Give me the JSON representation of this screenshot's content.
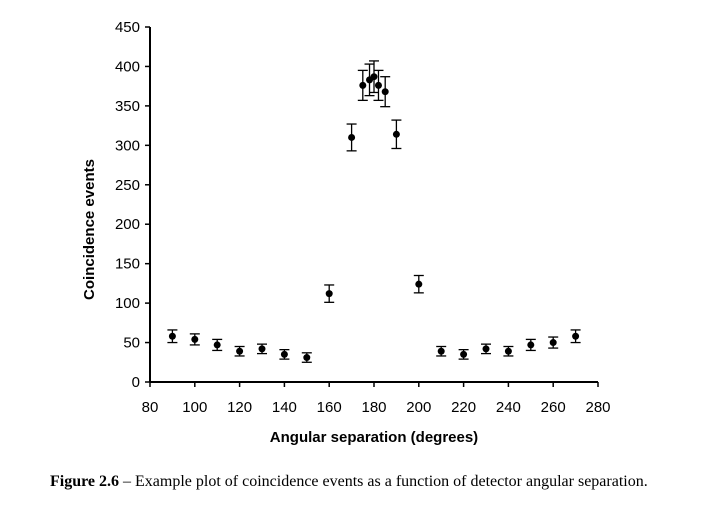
{
  "chart_data": {
    "type": "scatter",
    "xlabel": "Angular separation (degrees)",
    "ylabel": "Coincidence events",
    "xlim": [
      80,
      280
    ],
    "ylim": [
      0,
      450
    ],
    "xticks": [
      80,
      100,
      120,
      140,
      160,
      180,
      200,
      220,
      240,
      260,
      280
    ],
    "yticks": [
      0,
      50,
      100,
      150,
      200,
      250,
      300,
      350,
      400,
      450
    ],
    "grid": false,
    "error_bars": true,
    "points": [
      {
        "x": 90,
        "y": 58,
        "err": 8
      },
      {
        "x": 100,
        "y": 54,
        "err": 7
      },
      {
        "x": 110,
        "y": 47,
        "err": 7
      },
      {
        "x": 120,
        "y": 39,
        "err": 6
      },
      {
        "x": 130,
        "y": 42,
        "err": 6
      },
      {
        "x": 140,
        "y": 35,
        "err": 6
      },
      {
        "x": 150,
        "y": 31,
        "err": 6
      },
      {
        "x": 160,
        "y": 112,
        "err": 11
      },
      {
        "x": 170,
        "y": 310,
        "err": 17
      },
      {
        "x": 175,
        "y": 376,
        "err": 19
      },
      {
        "x": 178,
        "y": 383,
        "err": 20
      },
      {
        "x": 180,
        "y": 387,
        "err": 20
      },
      {
        "x": 182,
        "y": 376,
        "err": 19
      },
      {
        "x": 185,
        "y": 368,
        "err": 19
      },
      {
        "x": 190,
        "y": 314,
        "err": 18
      },
      {
        "x": 200,
        "y": 124,
        "err": 11
      },
      {
        "x": 210,
        "y": 39,
        "err": 6
      },
      {
        "x": 220,
        "y": 35,
        "err": 6
      },
      {
        "x": 230,
        "y": 42,
        "err": 6
      },
      {
        "x": 240,
        "y": 39,
        "err": 6
      },
      {
        "x": 250,
        "y": 47,
        "err": 7
      },
      {
        "x": 260,
        "y": 50,
        "err": 7
      },
      {
        "x": 270,
        "y": 58,
        "err": 8
      }
    ],
    "color": "#000000"
  },
  "caption": {
    "label": "Figure 2.6",
    "text": " – Example plot of coincidence events as a function of detector angular separation."
  }
}
